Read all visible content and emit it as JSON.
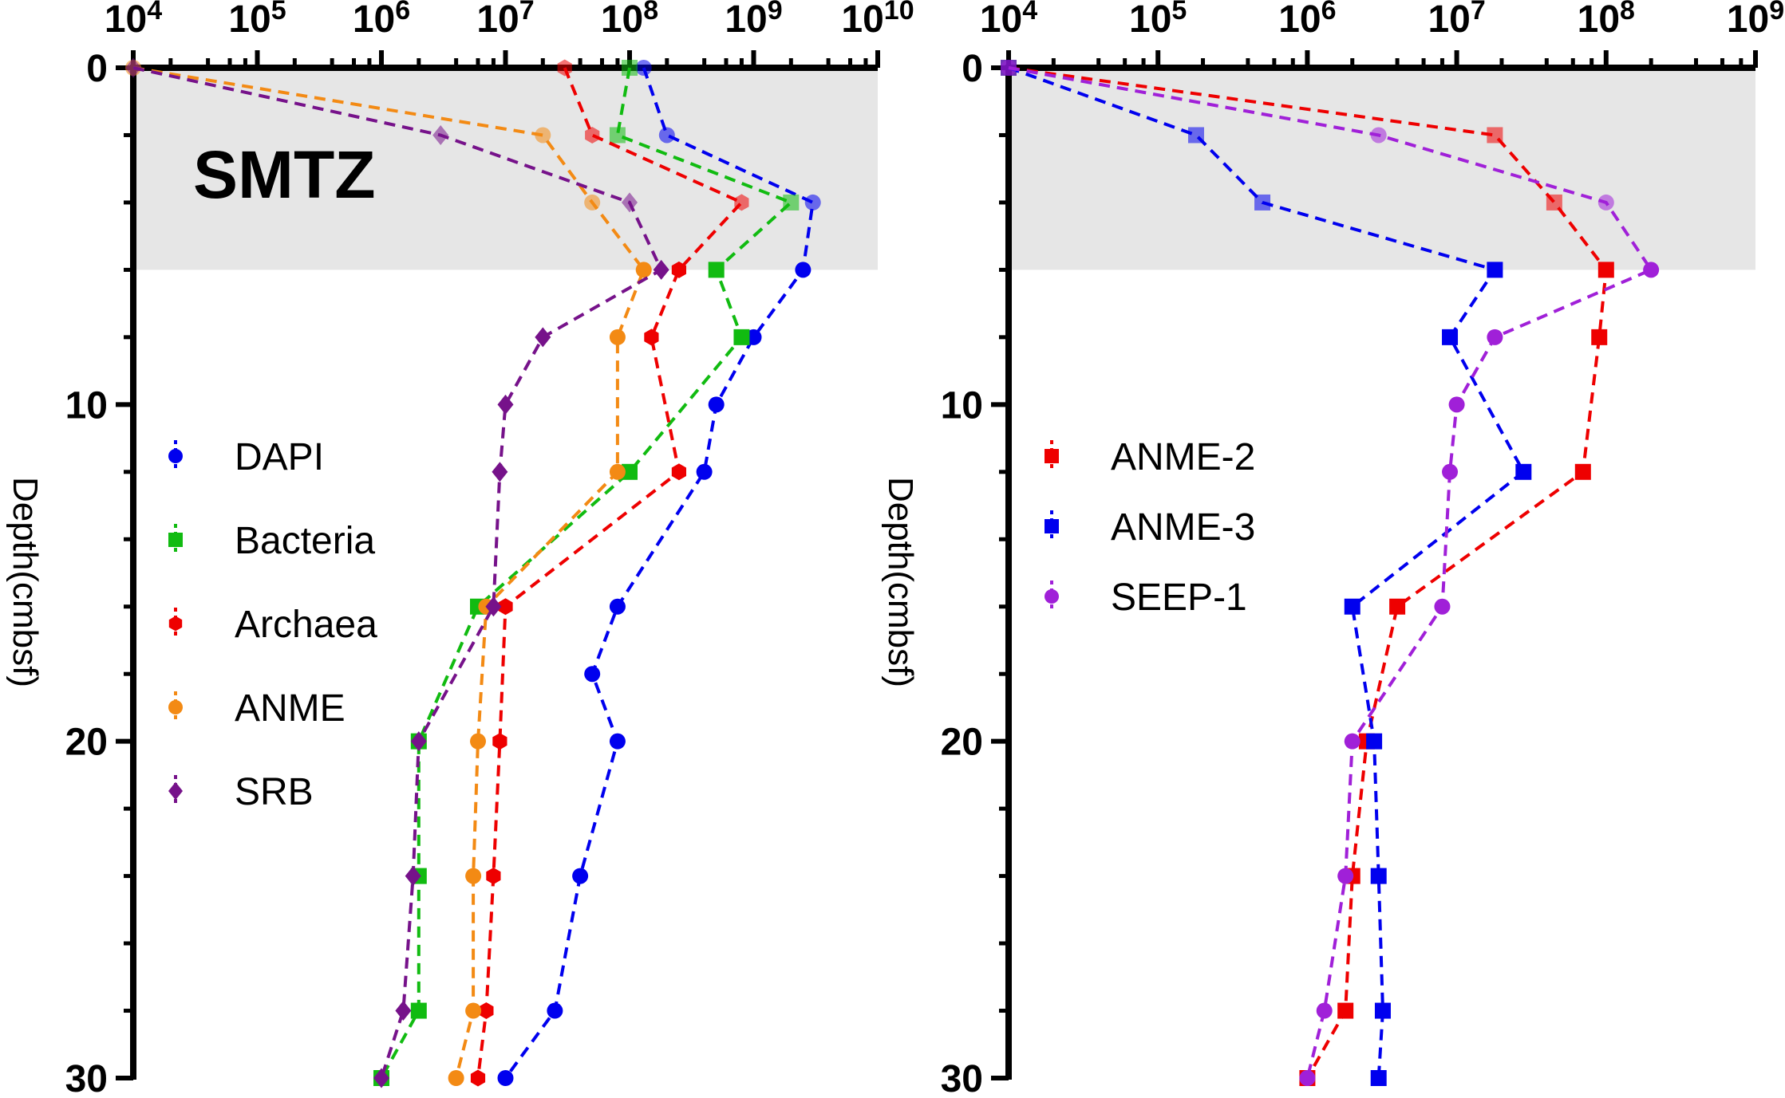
{
  "chart_data": [
    {
      "type": "line",
      "x_scale": "log",
      "xlim": [
        10000,
        10000000000
      ],
      "x_tick_labels": [
        "10^4",
        "10^5",
        "10^6",
        "10^7",
        "10^8",
        "10^9",
        "10^10"
      ],
      "ylabel": "Depth(cmbsf)",
      "ylim": [
        0,
        30
      ],
      "y_inverted": true,
      "y_ticks": [
        "0",
        "10",
        "20",
        "30"
      ],
      "shaded_region": {
        "label": "SMTZ",
        "from": 0,
        "to": 6,
        "color": "#e6e6e6"
      },
      "legend_position": "middle-left",
      "depths": [
        0,
        2,
        4,
        6,
        8,
        10,
        12,
        16,
        18,
        20,
        24,
        28,
        30
      ],
      "series": [
        {
          "name": "DAPI",
          "color": "#0000ee",
          "marker": "circle",
          "points": [
            [
              130000000,
              0
            ],
            [
              200000000,
              2
            ],
            [
              3000000000,
              4
            ],
            [
              2500000000,
              6
            ],
            [
              1000000000,
              8
            ],
            [
              500000000,
              10
            ],
            [
              400000000,
              12
            ],
            [
              80000000,
              16
            ],
            [
              50000000,
              18
            ],
            [
              80000000,
              20
            ],
            [
              40000000,
              24
            ],
            [
              25000000,
              28
            ],
            [
              10000000,
              30
            ]
          ]
        },
        {
          "name": "Bacteria",
          "color": "#11bb11",
          "marker": "square",
          "points": [
            [
              100000000,
              0
            ],
            [
              80000000,
              2
            ],
            [
              2000000000,
              4
            ],
            [
              500000000,
              6
            ],
            [
              800000000,
              8
            ],
            [
              100000000,
              12
            ],
            [
              6000000,
              16
            ],
            [
              2000000,
              20
            ],
            [
              2000000,
              24
            ],
            [
              2000000,
              28
            ],
            [
              1000000,
              30
            ]
          ]
        },
        {
          "name": "Archaea",
          "color": "#ee0000",
          "marker": "hexagon",
          "points": [
            [
              30000000,
              0
            ],
            [
              50000000,
              2
            ],
            [
              800000000,
              4
            ],
            [
              250000000,
              6
            ],
            [
              150000000,
              8
            ],
            [
              250000000,
              12
            ],
            [
              10000000,
              16
            ],
            [
              9000000,
              20
            ],
            [
              8000000,
              24
            ],
            [
              7000000,
              28
            ],
            [
              6000000,
              30
            ]
          ]
        },
        {
          "name": "ANME",
          "color": "#f38a14",
          "marker": "circle",
          "points": [
            [
              10000,
              0
            ],
            [
              20000000,
              2
            ],
            [
              50000000,
              4
            ],
            [
              130000000,
              6
            ],
            [
              80000000,
              8
            ],
            [
              80000000,
              12
            ],
            [
              7000000,
              16
            ],
            [
              6000000,
              20
            ],
            [
              5500000,
              24
            ],
            [
              5500000,
              28
            ],
            [
              4000000,
              30
            ]
          ]
        },
        {
          "name": "SRB",
          "color": "#76128a",
          "marker": "diamond",
          "points": [
            [
              10000,
              0
            ],
            [
              3000000,
              2
            ],
            [
              100000000,
              4
            ],
            [
              180000000,
              6
            ],
            [
              20000000,
              8
            ],
            [
              10000000,
              10
            ],
            [
              9000000,
              12
            ],
            [
              8000000,
              16
            ],
            [
              2000000,
              20
            ],
            [
              1800000,
              24
            ],
            [
              1500000,
              28
            ],
            [
              1000000,
              30
            ]
          ]
        }
      ]
    },
    {
      "type": "line",
      "x_scale": "log",
      "xlim": [
        10000,
        1000000000
      ],
      "x_tick_labels": [
        "10^4",
        "10^5",
        "10^6",
        "10^7",
        "10^8",
        "10^9"
      ],
      "ylabel": "Depth(cmbsf)",
      "ylim": [
        0,
        30
      ],
      "y_inverted": true,
      "y_ticks": [
        "0",
        "10",
        "20",
        "30"
      ],
      "shaded_region": {
        "label": "",
        "from": 0,
        "to": 6,
        "color": "#e6e6e6"
      },
      "legend_position": "middle-left",
      "series": [
        {
          "name": "ANME-2",
          "color": "#ee0000",
          "marker": "square",
          "points": [
            [
              10000,
              0
            ],
            [
              18000000,
              2
            ],
            [
              45000000,
              4
            ],
            [
              100000000,
              6
            ],
            [
              90000000,
              8
            ],
            [
              70000000,
              12
            ],
            [
              4000000,
              16
            ],
            [
              2500000,
              20
            ],
            [
              2000000,
              24
            ],
            [
              1800000,
              28
            ],
            [
              1000000,
              30
            ]
          ]
        },
        {
          "name": "ANME-3",
          "color": "#0000ee",
          "marker": "square",
          "points": [
            [
              10000,
              0
            ],
            [
              180000,
              2
            ],
            [
              500000,
              4
            ],
            [
              18000000,
              6
            ],
            [
              9000000,
              8
            ],
            [
              28000000,
              12
            ],
            [
              2000000,
              16
            ],
            [
              2800000,
              20
            ],
            [
              3000000,
              24
            ],
            [
              3200000,
              28
            ],
            [
              3000000,
              30
            ]
          ]
        },
        {
          "name": "SEEP-1",
          "color": "#a020d8",
          "marker": "circle",
          "points": [
            [
              10000,
              0
            ],
            [
              3000000,
              2
            ],
            [
              100000000,
              4
            ],
            [
              200000000,
              6
            ],
            [
              18000000,
              8
            ],
            [
              10000000,
              10
            ],
            [
              9000000,
              12
            ],
            [
              8000000,
              16
            ],
            [
              2000000,
              20
            ],
            [
              1800000,
              24
            ],
            [
              1300000,
              28
            ],
            [
              1000000,
              30
            ]
          ]
        }
      ]
    }
  ]
}
